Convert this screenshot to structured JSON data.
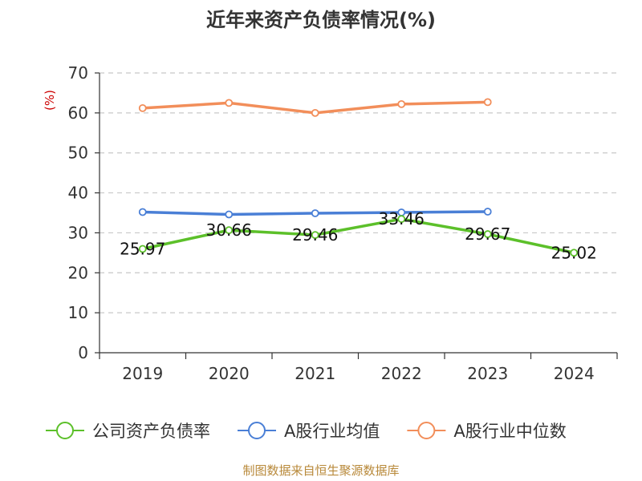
{
  "chart_data": {
    "type": "line",
    "title": "近年来资产负债率情况(%)",
    "ylabel": "(%)",
    "xlabel": "",
    "categories": [
      "2019",
      "2020",
      "2021",
      "2022",
      "2023",
      "2024"
    ],
    "ylim": [
      0,
      70
    ],
    "yticks": [
      0,
      10,
      20,
      30,
      40,
      50,
      60,
      70
    ],
    "grid": true,
    "legend_position": "bottom",
    "series": [
      {
        "name": "公司资产负债率",
        "color": "#5cc02a",
        "values": [
          25.97,
          30.66,
          29.46,
          33.46,
          29.67,
          25.02
        ],
        "labels": [
          "25.97",
          "30.66",
          "29.46",
          "33.46",
          "29.67",
          "25.02"
        ]
      },
      {
        "name": "A股行业均值",
        "color": "#4a7fd6",
        "values": [
          35.2,
          34.6,
          34.9,
          35.1,
          35.3,
          null
        ]
      },
      {
        "name": "A股行业中位数",
        "color": "#f28e5a",
        "values": [
          61.2,
          62.5,
          60.0,
          62.2,
          62.7,
          null
        ]
      }
    ]
  },
  "source": "制图数据来自恒生聚源数据库"
}
